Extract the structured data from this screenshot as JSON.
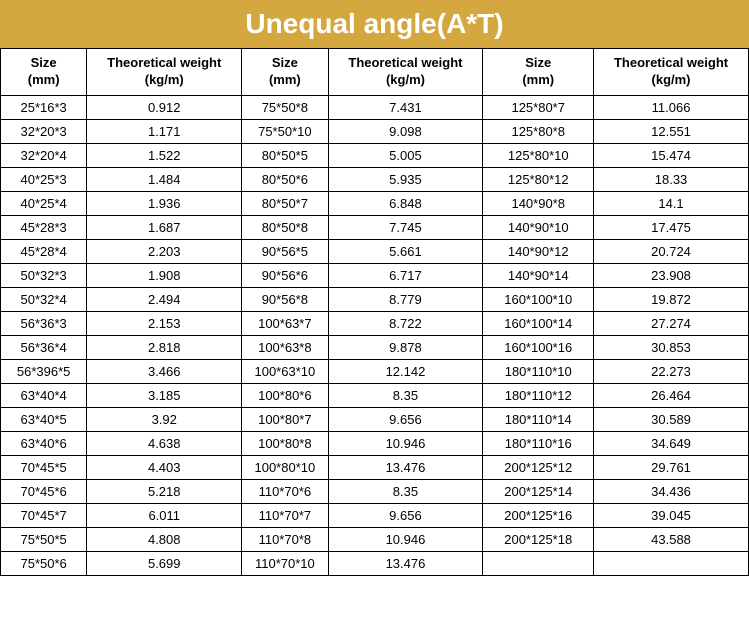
{
  "banner": {
    "title": "Unequal angle(A*T)",
    "bg": "#d4a83e",
    "fg": "#ffffff"
  },
  "headers": {
    "size": "Size",
    "size_unit": "(mm)",
    "weight": "Theoretical weight",
    "weight_unit": "(kg/m)"
  },
  "table": {
    "col1": [
      {
        "size": "25*16*3",
        "wt": "0.912"
      },
      {
        "size": "32*20*3",
        "wt": "1.171"
      },
      {
        "size": "32*20*4",
        "wt": "1.522"
      },
      {
        "size": "40*25*3",
        "wt": "1.484"
      },
      {
        "size": "40*25*4",
        "wt": "1.936"
      },
      {
        "size": "45*28*3",
        "wt": "1.687"
      },
      {
        "size": "45*28*4",
        "wt": "2.203"
      },
      {
        "size": "50*32*3",
        "wt": "1.908"
      },
      {
        "size": "50*32*4",
        "wt": "2.494"
      },
      {
        "size": "56*36*3",
        "wt": "2.153"
      },
      {
        "size": "56*36*4",
        "wt": "2.818"
      },
      {
        "size": "56*396*5",
        "wt": "3.466"
      },
      {
        "size": "63*40*4",
        "wt": "3.185"
      },
      {
        "size": "63*40*5",
        "wt": "3.92"
      },
      {
        "size": "63*40*6",
        "wt": "4.638"
      },
      {
        "size": "70*45*5",
        "wt": "4.403"
      },
      {
        "size": "70*45*6",
        "wt": "5.218"
      },
      {
        "size": "70*45*7",
        "wt": "6.011"
      },
      {
        "size": "75*50*5",
        "wt": "4.808"
      },
      {
        "size": "75*50*6",
        "wt": "5.699"
      }
    ],
    "col2": [
      {
        "size": "75*50*8",
        "wt": "7.431"
      },
      {
        "size": "75*50*10",
        "wt": "9.098"
      },
      {
        "size": "80*50*5",
        "wt": "5.005"
      },
      {
        "size": "80*50*6",
        "wt": "5.935"
      },
      {
        "size": "80*50*7",
        "wt": "6.848"
      },
      {
        "size": "80*50*8",
        "wt": "7.745"
      },
      {
        "size": "90*56*5",
        "wt": "5.661"
      },
      {
        "size": "90*56*6",
        "wt": "6.717"
      },
      {
        "size": "90*56*8",
        "wt": "8.779"
      },
      {
        "size": "100*63*7",
        "wt": "8.722"
      },
      {
        "size": "100*63*8",
        "wt": "9.878"
      },
      {
        "size": "100*63*10",
        "wt": "12.142"
      },
      {
        "size": "100*80*6",
        "wt": "8.35"
      },
      {
        "size": "100*80*7",
        "wt": "9.656"
      },
      {
        "size": "100*80*8",
        "wt": "10.946"
      },
      {
        "size": "100*80*10",
        "wt": "13.476"
      },
      {
        "size": "110*70*6",
        "wt": "8.35"
      },
      {
        "size": "110*70*7",
        "wt": "9.656"
      },
      {
        "size": "110*70*8",
        "wt": "10.946"
      },
      {
        "size": "110*70*10",
        "wt": "13.476"
      }
    ],
    "col3": [
      {
        "size": "125*80*7",
        "wt": "11.066"
      },
      {
        "size": "125*80*8",
        "wt": "12.551"
      },
      {
        "size": "125*80*10",
        "wt": "15.474"
      },
      {
        "size": "125*80*12",
        "wt": "18.33"
      },
      {
        "size": "140*90*8",
        "wt": "14.1"
      },
      {
        "size": "140*90*10",
        "wt": "17.475"
      },
      {
        "size": "140*90*12",
        "wt": "20.724"
      },
      {
        "size": "140*90*14",
        "wt": "23.908"
      },
      {
        "size": "160*100*10",
        "wt": "19.872"
      },
      {
        "size": "160*100*14",
        "wt": "27.274"
      },
      {
        "size": "160*100*16",
        "wt": "30.853"
      },
      {
        "size": "180*110*10",
        "wt": "22.273"
      },
      {
        "size": "180*110*12",
        "wt": "26.464"
      },
      {
        "size": "180*110*14",
        "wt": "30.589"
      },
      {
        "size": "180*110*16",
        "wt": "34.649"
      },
      {
        "size": "200*125*12",
        "wt": "29.761"
      },
      {
        "size": "200*125*14",
        "wt": "34.436"
      },
      {
        "size": "200*125*16",
        "wt": "39.045"
      },
      {
        "size": "200*125*18",
        "wt": "43.588"
      },
      {
        "size": "",
        "wt": ""
      }
    ]
  }
}
